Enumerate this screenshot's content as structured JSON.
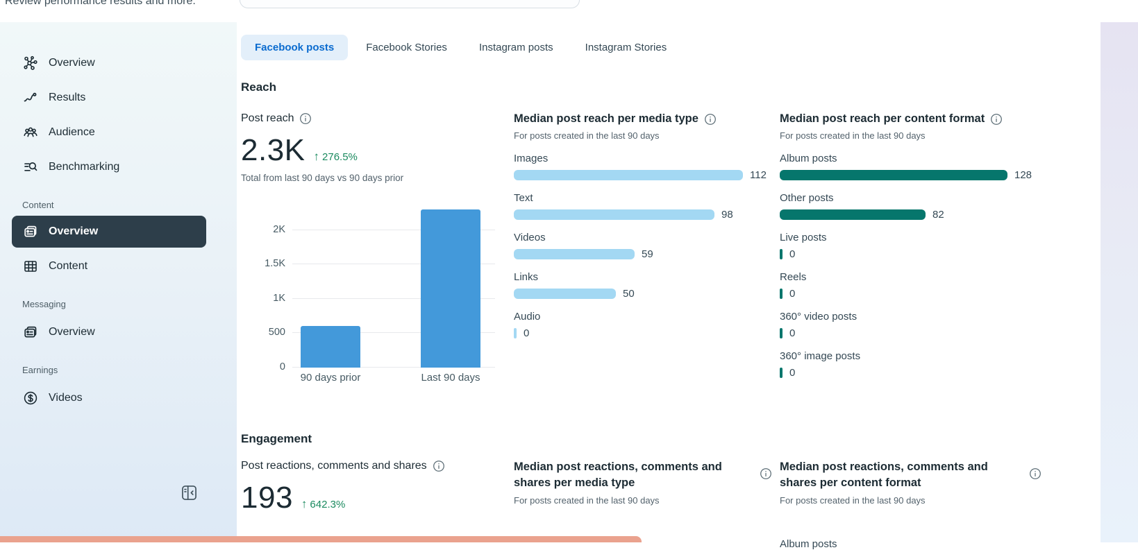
{
  "topbar": {
    "subtitle": "Review performance results and more."
  },
  "sidebar": {
    "entries": [
      {
        "type": "item",
        "id": "overview",
        "icon": "network-icon",
        "label": "Overview"
      },
      {
        "type": "item",
        "id": "results",
        "icon": "trend-icon",
        "label": "Results"
      },
      {
        "type": "item",
        "id": "audience",
        "icon": "people-icon",
        "label": "Audience"
      },
      {
        "type": "item",
        "id": "benchmarking",
        "icon": "benchmark-icon",
        "label": "Benchmarking"
      },
      {
        "type": "section",
        "label": "Content"
      },
      {
        "type": "item",
        "id": "content-overview",
        "icon": "cards-icon",
        "label": "Overview",
        "active": true
      },
      {
        "type": "item",
        "id": "content-content",
        "icon": "table-icon",
        "label": "Content"
      },
      {
        "type": "section",
        "label": "Messaging"
      },
      {
        "type": "item",
        "id": "messaging-overview",
        "icon": "cards-icon",
        "label": "Overview"
      },
      {
        "type": "section",
        "label": "Earnings"
      },
      {
        "type": "item",
        "id": "earnings-videos",
        "icon": "dollar-icon",
        "label": "Videos"
      }
    ]
  },
  "tabs": [
    {
      "id": "facebook-posts",
      "label": "Facebook posts",
      "active": true
    },
    {
      "id": "facebook-stories",
      "label": "Facebook Stories"
    },
    {
      "id": "instagram-posts",
      "label": "Instagram posts"
    },
    {
      "id": "instagram-stories",
      "label": "Instagram Stories"
    }
  ],
  "reach": {
    "heading": "Reach",
    "metric": {
      "title": "Post reach",
      "value": "2.3K",
      "delta_arrow": "↑",
      "delta": "276.5%",
      "caption": "Total from last 90 days vs 90 days prior"
    },
    "media_type": {
      "title": "Median post reach per media type",
      "subtitle": "For posts created in the last 90 days",
      "bars": [
        {
          "label": "Images",
          "value": 112
        },
        {
          "label": "Text",
          "value": 98
        },
        {
          "label": "Videos",
          "value": 59
        },
        {
          "label": "Links",
          "value": 50
        },
        {
          "label": "Audio",
          "value": 0
        }
      ]
    },
    "content_format": {
      "title": "Median post reach per content format",
      "subtitle": "For posts created in the last 90 days",
      "bars": [
        {
          "label": "Album posts",
          "value": 128
        },
        {
          "label": "Other posts",
          "value": 82
        },
        {
          "label": "Live posts",
          "value": 0
        },
        {
          "label": "Reels",
          "value": 0
        },
        {
          "label": "360° video posts",
          "value": 0
        },
        {
          "label": "360° image posts",
          "value": 0
        }
      ]
    }
  },
  "engagement": {
    "heading": "Engagement",
    "metric": {
      "title": "Post reactions, comments and shares",
      "value": "193",
      "delta_arrow": "↑",
      "delta": "642.3%"
    },
    "media_type": {
      "title": "Median post reactions, comments and shares per media type",
      "subtitle": "For posts created in the last 90 days"
    },
    "content_format": {
      "title": "Median post reactions, comments and shares per content format",
      "subtitle": "For posts created in the last 90 days",
      "partial_row_label": "Album posts"
    }
  },
  "chart_data": [
    {
      "type": "bar",
      "title": "Post reach",
      "categories": [
        "90 days prior",
        "Last 90 days"
      ],
      "values": [
        610,
        2300
      ],
      "xlabel": "",
      "ylabel": "",
      "ylim": [
        0,
        2420
      ],
      "yticks": [
        {
          "v": 0,
          "label": "0"
        },
        {
          "v": 500,
          "label": "500"
        },
        {
          "v": 1000,
          "label": "1K"
        },
        {
          "v": 1500,
          "label": "1.5K"
        },
        {
          "v": 2000,
          "label": "2K"
        }
      ],
      "grid": true,
      "bar_color": "#4399da"
    },
    {
      "type": "bar",
      "orientation": "horizontal",
      "title": "Median post reach per media type",
      "categories": [
        "Images",
        "Text",
        "Videos",
        "Links",
        "Audio"
      ],
      "values": [
        112,
        98,
        59,
        50,
        0
      ],
      "bar_color": "#a3d8f3"
    },
    {
      "type": "bar",
      "orientation": "horizontal",
      "title": "Median post reach per content format",
      "categories": [
        "Album posts",
        "Other posts",
        "Live posts",
        "Reels",
        "360° video posts",
        "360° image posts"
      ],
      "values": [
        128,
        82,
        0,
        0,
        0,
        0
      ],
      "bar_color": "#06766c"
    }
  ],
  "colors": {
    "accent_blue": "#0a6bcf",
    "active_tab_bg": "#e3effa",
    "chart_blue": "#4399da",
    "light_blue_bar": "#a3d8f3",
    "teal_bar": "#06766c",
    "positive_green": "#1b8a5f",
    "active_nav_bg": "#2d3e4a",
    "toast_salmon": "#eaa28e"
  }
}
